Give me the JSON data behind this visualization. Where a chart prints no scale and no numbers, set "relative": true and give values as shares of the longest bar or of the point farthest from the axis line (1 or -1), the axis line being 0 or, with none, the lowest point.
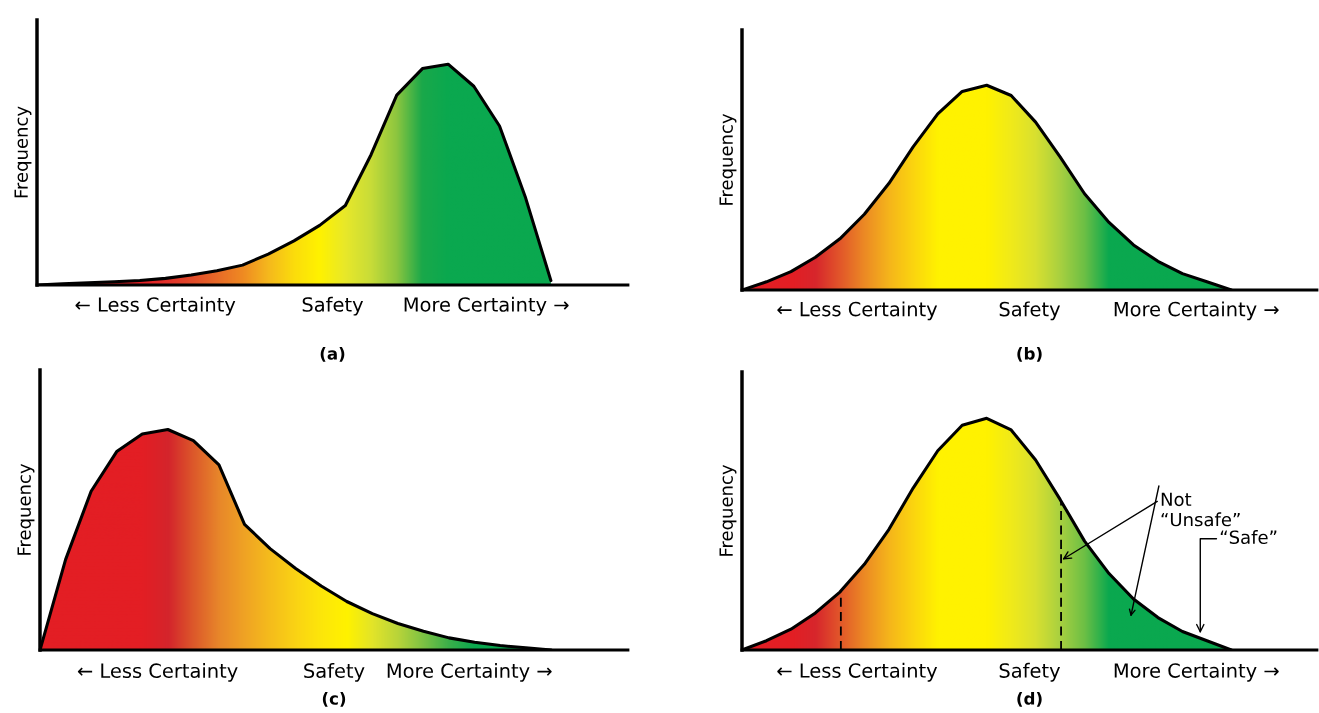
{
  "chart_data": [
    {
      "type": "line",
      "relative": true,
      "title": "(a)",
      "ylabel": "Frequency",
      "categories": [
        null,
        null,
        null,
        null,
        null,
        null,
        null,
        null,
        null,
        null,
        null,
        null,
        null,
        null,
        null,
        null,
        null,
        null,
        null,
        null,
        null
      ],
      "series": [
        {
          "color": "#000000",
          "values": [
            0,
            0.005,
            0.01,
            0.015,
            0.02,
            0.03,
            0.045,
            0.065,
            0.09,
            0.14,
            0.2,
            0.27,
            0.36,
            0.59,
            0.86,
            0.98,
            1.0,
            0.9,
            0.72,
            0.4,
            0.02
          ],
          "colors": [
            "#e31e24",
            "#e31e24",
            "#e31e24",
            "#e31e24",
            "#e31e24",
            "#e2302a",
            "#e24a2a",
            "#e86a28",
            "#ef8a22",
            "#f5b81d",
            "#fbdc0c",
            "#fff200",
            "#e8e82a",
            "#c8dc38",
            "#8dc63f",
            "#1aa84a",
            "#0aa84f",
            "#0aa84f",
            "#0aa84f",
            "#0aa84f",
            "#0aa84f"
          ]
        }
      ],
      "annotations": [
        "← Less Certainty",
        "Safety",
        "More Certainty →"
      ]
    },
    {
      "type": "line",
      "relative": true,
      "title": "(b)",
      "ylabel": "Frequency",
      "categories": [
        null,
        null,
        null,
        null,
        null,
        null,
        null,
        null,
        null,
        null,
        null,
        null,
        null,
        null,
        null,
        null,
        null,
        null,
        null,
        null,
        null
      ],
      "series": [
        {
          "color": "#000000",
          "values": [
            0,
            0.04,
            0.09,
            0.16,
            0.25,
            0.37,
            0.52,
            0.7,
            0.86,
            0.97,
            1.0,
            0.95,
            0.82,
            0.65,
            0.47,
            0.33,
            0.22,
            0.14,
            0.08,
            0.04,
            0
          ],
          "colors": [
            "#e31e24",
            "#e31e24",
            "#e31e24",
            "#d7262c",
            "#e2572a",
            "#ec8a24",
            "#f5b51b",
            "#fbd50f",
            "#fff200",
            "#fff200",
            "#fff200",
            "#f0ea1a",
            "#d8e030",
            "#a8d040",
            "#6cbf45",
            "#0aa84f",
            "#0aa84f",
            "#0aa84f",
            "#0aa84f",
            "#0aa84f",
            "#0aa84f"
          ]
        }
      ],
      "annotations": [
        "← Less Certainty",
        "Safety",
        "More Certainty →"
      ]
    },
    {
      "type": "line",
      "relative": true,
      "title": "(c)",
      "ylabel": "Frequency",
      "categories": [
        null,
        null,
        null,
        null,
        null,
        null,
        null,
        null,
        null,
        null,
        null,
        null,
        null,
        null,
        null,
        null,
        null,
        null,
        null,
        null,
        null
      ],
      "series": [
        {
          "color": "#000000",
          "values": [
            0,
            0.41,
            0.72,
            0.9,
            0.98,
            1.0,
            0.95,
            0.84,
            0.57,
            0.46,
            0.37,
            0.29,
            0.22,
            0.165,
            0.12,
            0.085,
            0.055,
            0.035,
            0.02,
            0.01,
            0
          ],
          "colors": [
            "#e31e24",
            "#e31e24",
            "#e31e24",
            "#e31e24",
            "#e31e24",
            "#d4252c",
            "#dd5a2a",
            "#e8882a",
            "#f0a424",
            "#f5bd1c",
            "#fad414",
            "#fde70a",
            "#fff200",
            "#e2e42a",
            "#b8d43a",
            "#7cc244",
            "#3aae4a",
            "#0aa84f",
            "#0aa84f",
            "#0aa84f",
            "#0aa84f"
          ]
        }
      ],
      "annotations": [
        "← Less Certainty",
        "Safety",
        "More Certainty →"
      ]
    },
    {
      "type": "line",
      "relative": true,
      "title": "(d)",
      "ylabel": "Frequency",
      "categories": [
        null,
        null,
        null,
        null,
        null,
        null,
        null,
        null,
        null,
        null,
        null,
        null,
        null,
        null,
        null,
        null,
        null,
        null,
        null,
        null,
        null
      ],
      "series": [
        {
          "color": "#000000",
          "values": [
            0,
            0.04,
            0.09,
            0.16,
            0.25,
            0.37,
            0.52,
            0.7,
            0.86,
            0.97,
            1.0,
            0.95,
            0.82,
            0.65,
            0.47,
            0.33,
            0.22,
            0.14,
            0.08,
            0.04,
            0
          ],
          "colors": [
            "#e31e24",
            "#e31e24",
            "#e31e24",
            "#d7262c",
            "#e2572a",
            "#ec8a24",
            "#f5b51b",
            "#fbd50f",
            "#fff200",
            "#fff200",
            "#fff200",
            "#f0ea1a",
            "#d8e030",
            "#a8d040",
            "#6cbf45",
            "#0aa84f",
            "#0aa84f",
            "#0aa84f",
            "#0aa84f",
            "#0aa84f",
            "#0aa84f"
          ]
        }
      ],
      "annotations": [
        "← Less Certainty",
        "Safety",
        "More Certainty →",
        "Not\n“Unsafe”",
        "“Safe”"
      ]
    }
  ]
}
